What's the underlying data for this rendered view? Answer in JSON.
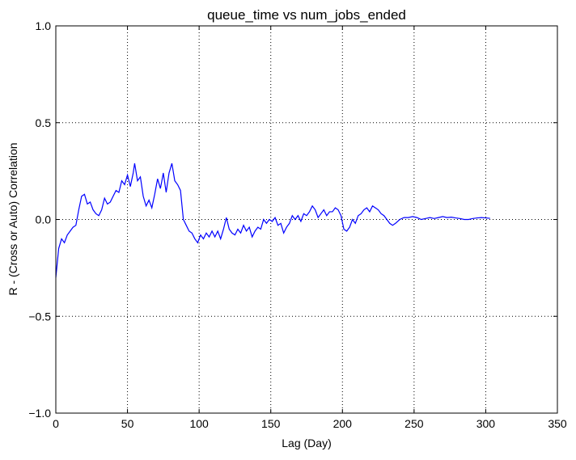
{
  "chart_data": {
    "type": "line",
    "title": "queue_time vs num_jobs_ended",
    "x_label": "Lag (Day)",
    "y_label": "R - (Cross or Auto) Correlation",
    "x": [
      0,
      2,
      4,
      6,
      8,
      10,
      12,
      14,
      16,
      18,
      20,
      22,
      24,
      26,
      28,
      30,
      32,
      34,
      36,
      38,
      40,
      42,
      44,
      46,
      48,
      50,
      52,
      54,
      55,
      57,
      59,
      61,
      63,
      65,
      67,
      69,
      71,
      73,
      75,
      77,
      79,
      81,
      83,
      85,
      87,
      89,
      91,
      93,
      95,
      97,
      99,
      101,
      103,
      105,
      107,
      109,
      111,
      113,
      115,
      117,
      119,
      121,
      123,
      125,
      127,
      129,
      131,
      133,
      135,
      137,
      139,
      141,
      143,
      145,
      147,
      149,
      151,
      153,
      155,
      157,
      159,
      161,
      163,
      165,
      167,
      169,
      171,
      173,
      175,
      177,
      179,
      181,
      183,
      185,
      187,
      189,
      191,
      193,
      195,
      197,
      199,
      201,
      203,
      205,
      207,
      209,
      211,
      213,
      215,
      217,
      219,
      221,
      223,
      225,
      227,
      229,
      231,
      233,
      235,
      237,
      240,
      243,
      246,
      249,
      252,
      255,
      258,
      261,
      264,
      267,
      270,
      273,
      276,
      279,
      282,
      285,
      288,
      291,
      294,
      297,
      300,
      303
    ],
    "series": [
      {
        "name": "queue_time vs num_jobs_ended",
        "color": "#0000ff",
        "values": [
          -0.3,
          -0.15,
          -0.1,
          -0.12,
          -0.08,
          -0.06,
          -0.04,
          -0.03,
          0.05,
          0.12,
          0.13,
          0.08,
          0.09,
          0.05,
          0.03,
          0.02,
          0.05,
          0.11,
          0.08,
          0.09,
          0.12,
          0.15,
          0.14,
          0.2,
          0.18,
          0.23,
          0.17,
          0.24,
          0.29,
          0.2,
          0.22,
          0.12,
          0.07,
          0.1,
          0.06,
          0.13,
          0.21,
          0.16,
          0.24,
          0.14,
          0.24,
          0.29,
          0.2,
          0.18,
          0.15,
          0.0,
          -0.03,
          -0.06,
          -0.07,
          -0.1,
          -0.12,
          -0.08,
          -0.1,
          -0.07,
          -0.09,
          -0.06,
          -0.09,
          -0.06,
          -0.1,
          -0.05,
          0.01,
          -0.05,
          -0.07,
          -0.08,
          -0.05,
          -0.07,
          -0.03,
          -0.06,
          -0.04,
          -0.09,
          -0.06,
          -0.04,
          -0.05,
          0.0,
          -0.02,
          0.0,
          -0.01,
          0.01,
          -0.03,
          -0.02,
          -0.07,
          -0.04,
          -0.02,
          0.02,
          0.0,
          0.02,
          -0.01,
          0.03,
          0.02,
          0.04,
          0.07,
          0.05,
          0.01,
          0.03,
          0.05,
          0.02,
          0.04,
          0.04,
          0.06,
          0.05,
          0.02,
          -0.05,
          -0.06,
          -0.04,
          0.0,
          -0.02,
          0.02,
          0.03,
          0.05,
          0.06,
          0.04,
          0.07,
          0.06,
          0.05,
          0.03,
          0.02,
          0.0,
          -0.02,
          -0.03,
          -0.02,
          0.0,
          0.01,
          0.01,
          0.015,
          0.01,
          0.0,
          0.005,
          0.01,
          0.005,
          0.01,
          0.015,
          0.01,
          0.012,
          0.008,
          0.005,
          0.0,
          0.0,
          0.005,
          0.008,
          0.01,
          0.008,
          0.006
        ]
      }
    ],
    "xlim": [
      0,
      350
    ],
    "xticks": [
      0,
      50,
      100,
      150,
      200,
      250,
      300,
      350
    ],
    "ylim": [
      -1,
      1
    ],
    "yticks": [
      {
        "value": -1,
        "label": "−1.0"
      },
      {
        "value": -0.5,
        "label": "−0.5"
      },
      {
        "value": 0,
        "label": "0.0"
      },
      {
        "value": 0.5,
        "label": "0.5"
      },
      {
        "value": 1,
        "label": "1.0"
      }
    ],
    "grid": true
  }
}
